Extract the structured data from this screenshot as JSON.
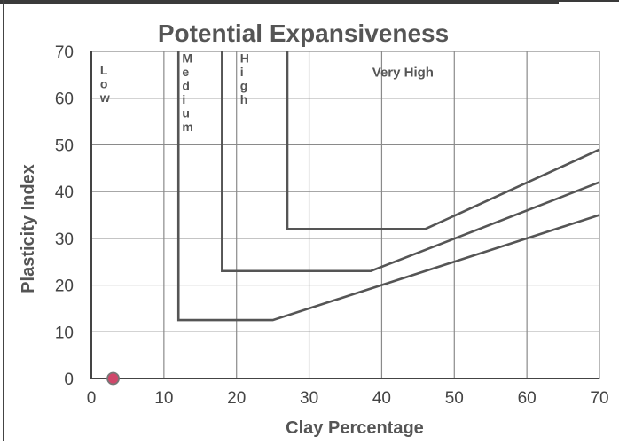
{
  "chart_data": {
    "type": "line",
    "title": "Potential Expansiveness",
    "xlabel": "Clay Percentage",
    "ylabel": "Plasticity Index",
    "xlim": [
      0,
      70
    ],
    "ylim": [
      0,
      70
    ],
    "x_ticks": [
      0,
      10,
      20,
      30,
      40,
      50,
      60,
      70
    ],
    "y_ticks": [
      0,
      10,
      20,
      30,
      40,
      50,
      60,
      70
    ],
    "grid": true,
    "series": [
      {
        "points": [
          [
            12,
            70
          ],
          [
            12,
            12.5
          ],
          [
            25,
            12.5
          ],
          [
            70,
            35
          ]
        ]
      },
      {
        "points": [
          [
            18,
            70
          ],
          [
            18,
            23
          ],
          [
            38.5,
            23
          ],
          [
            70,
            42
          ]
        ]
      },
      {
        "points": [
          [
            27,
            70
          ],
          [
            27,
            32
          ],
          [
            46,
            32
          ],
          [
            70,
            49
          ]
        ]
      }
    ],
    "marker": {
      "x": 3,
      "y": 0,
      "color": "#d0476a"
    },
    "region_labels": [
      {
        "text": "Low",
        "vertical": true,
        "x": 1.2,
        "y": 67
      },
      {
        "text": "Medium",
        "vertical": true,
        "x": 12.5,
        "y": 69.5
      },
      {
        "text": "High",
        "vertical": true,
        "x": 20.5,
        "y": 69.5
      },
      {
        "text": "Very High",
        "vertical": false,
        "x": 38.7,
        "y": 66.5
      }
    ],
    "colors": {
      "line": "#555555",
      "grid": "#8a8a8a",
      "axis": "#444444"
    }
  }
}
